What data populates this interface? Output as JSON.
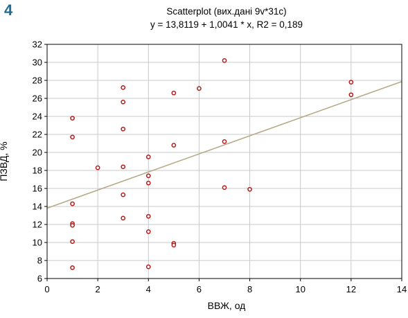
{
  "panel_label": "4",
  "chart_data": {
    "type": "scatter",
    "title": "Scatterplot (вих.дані 9v*31c)",
    "subtitle": "y = 13,8119 + 1,0041 * x, R2 = 0,189",
    "xlabel": "ВВЖ, од",
    "ylabel": "ПЗВД, %",
    "xlim": [
      0,
      14
    ],
    "ylim": [
      6,
      32
    ],
    "xticks": [
      0,
      2,
      4,
      6,
      8,
      10,
      12,
      14
    ],
    "yticks": [
      6,
      8,
      10,
      12,
      14,
      16,
      18,
      20,
      22,
      24,
      26,
      28,
      30,
      32
    ],
    "grid": true,
    "regression": {
      "intercept": 13.8119,
      "slope": 1.0041
    },
    "colors": {
      "points": "#b41a1a",
      "line": "#b8a98a",
      "grid": "#c8c8c8",
      "axis": "#000000"
    },
    "points": [
      {
        "x": 1,
        "y": 23.8
      },
      {
        "x": 1,
        "y": 21.7
      },
      {
        "x": 1,
        "y": 14.3
      },
      {
        "x": 1,
        "y": 12.1
      },
      {
        "x": 1,
        "y": 11.9
      },
      {
        "x": 1,
        "y": 10.1
      },
      {
        "x": 1,
        "y": 7.2
      },
      {
        "x": 2,
        "y": 18.3
      },
      {
        "x": 3,
        "y": 27.2
      },
      {
        "x": 3,
        "y": 25.6
      },
      {
        "x": 3,
        "y": 22.6
      },
      {
        "x": 3,
        "y": 18.4
      },
      {
        "x": 3,
        "y": 15.3
      },
      {
        "x": 3,
        "y": 12.7
      },
      {
        "x": 4,
        "y": 19.5
      },
      {
        "x": 4,
        "y": 17.4
      },
      {
        "x": 4,
        "y": 16.6
      },
      {
        "x": 4,
        "y": 12.9
      },
      {
        "x": 4,
        "y": 11.2
      },
      {
        "x": 4,
        "y": 7.3
      },
      {
        "x": 5,
        "y": 26.6
      },
      {
        "x": 5,
        "y": 20.8
      },
      {
        "x": 5,
        "y": 9.9
      },
      {
        "x": 5,
        "y": 9.7
      },
      {
        "x": 6,
        "y": 27.1
      },
      {
        "x": 7,
        "y": 30.2
      },
      {
        "x": 7,
        "y": 21.2
      },
      {
        "x": 7,
        "y": 16.1
      },
      {
        "x": 8,
        "y": 15.9
      },
      {
        "x": 12,
        "y": 27.8
      },
      {
        "x": 12,
        "y": 26.4
      }
    ]
  }
}
